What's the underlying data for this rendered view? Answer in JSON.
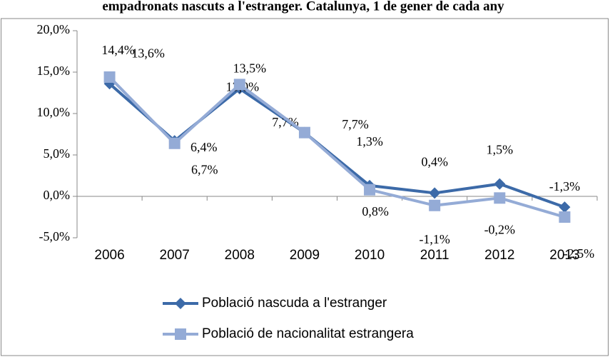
{
  "chart_data": {
    "type": "line",
    "title": "empadronats nascuts a l'estranger. Catalunya, 1 de gener de cada any",
    "categories": [
      "2006",
      "2007",
      "2008",
      "2009",
      "2010",
      "2011",
      "2012",
      "2013"
    ],
    "series": [
      {
        "name": "Població nascuda a l'estranger",
        "color": "#3c6aa8",
        "marker": "diamond",
        "values": [
          13.6,
          6.7,
          13.0,
          7.7,
          1.3,
          0.4,
          1.5,
          -1.3
        ],
        "value_labels": [
          "13,6%",
          "6,7%",
          "13,0%",
          "7,7%",
          "1,3%",
          "0,4%",
          "1,5%",
          "-1,3%"
        ]
      },
      {
        "name": "Població de nacionalitat estrangera",
        "color": "#94abd6",
        "marker": "square",
        "values": [
          14.4,
          6.4,
          13.5,
          7.7,
          0.8,
          -1.1,
          -0.2,
          -2.5
        ],
        "value_labels": [
          "14,4%",
          "6,4%",
          "13,5%",
          "7,7%",
          "0,8%",
          "-1,1%",
          "-0,2%",
          "-2,5%"
        ]
      }
    ],
    "ylim": [
      -5,
      20
    ],
    "yticks": [
      {
        "value": -5,
        "label": "-5,0%"
      },
      {
        "value": 0,
        "label": "0,0%"
      },
      {
        "value": 5,
        "label": "5,0%"
      },
      {
        "value": 10,
        "label": "10,0%"
      },
      {
        "value": 15,
        "label": "15,0%"
      },
      {
        "value": 20,
        "label": "20,0%"
      }
    ],
    "legend": "bottom"
  }
}
